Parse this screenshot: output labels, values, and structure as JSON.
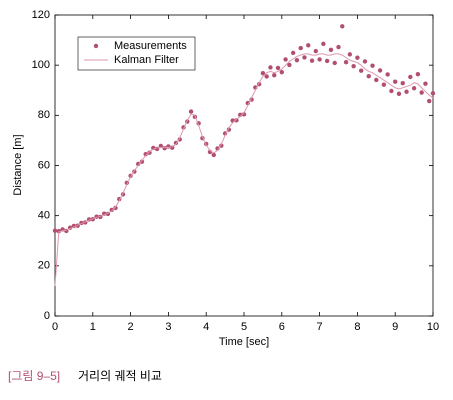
{
  "chart_data": {
    "type": "scatter",
    "xlabel": "Time [sec]",
    "ylabel": "Distance [m]",
    "xlim": [
      0,
      10
    ],
    "ylim": [
      0,
      120
    ],
    "xticks": [
      0,
      1,
      2,
      3,
      4,
      5,
      6,
      7,
      8,
      9,
      10
    ],
    "yticks": [
      0,
      20,
      40,
      60,
      80,
      100,
      120
    ],
    "grid": false,
    "legend": "upper left",
    "x": [
      0,
      0.1,
      0.2,
      0.3,
      0.4,
      0.5,
      0.6,
      0.7,
      0.8,
      0.9,
      1,
      1.1,
      1.2,
      1.3,
      1.4,
      1.5,
      1.6,
      1.7,
      1.8,
      1.9,
      2,
      2.1,
      2.2,
      2.3,
      2.4,
      2.5,
      2.6,
      2.7,
      2.8,
      2.9,
      3,
      3.1,
      3.2,
      3.3,
      3.4,
      3.5,
      3.6,
      3.7,
      3.8,
      3.9,
      4,
      4.1,
      4.2,
      4.3,
      4.4,
      4.5,
      4.6,
      4.7,
      4.8,
      4.9,
      5,
      5.1,
      5.2,
      5.3,
      5.4,
      5.5,
      5.6,
      5.7,
      5.8,
      5.9,
      6,
      6.1,
      6.2,
      6.3,
      6.4,
      6.5,
      6.6,
      6.7,
      6.8,
      6.9,
      7,
      7.1,
      7.2,
      7.3,
      7.4,
      7.5,
      7.6,
      7.7,
      7.8,
      7.9,
      8,
      8.1,
      8.2,
      8.3,
      8.4,
      8.5,
      8.6,
      8.7,
      8.8,
      8.9,
      9,
      9.1,
      9.2,
      9.3,
      9.4,
      9.5,
      9.6,
      9.7,
      9.8,
      9.9,
      10
    ],
    "series": [
      {
        "name": "Measurements",
        "style": "dots",
        "color": "#b24f6e",
        "values": [
          34,
          33.8,
          34.5,
          33.9,
          35.2,
          35.9,
          36.0,
          37.1,
          37.3,
          38.5,
          38.6,
          39.6,
          39.5,
          40.8,
          40.7,
          42.3,
          43.1,
          46.6,
          48.5,
          53.1,
          55.9,
          57.6,
          60.6,
          61.5,
          64.5,
          65.1,
          67.0,
          66.6,
          67.8,
          66.9,
          67.6,
          67.1,
          69.0,
          70.4,
          75.2,
          77.5,
          81.5,
          79.4,
          76.8,
          70.9,
          68.6,
          65.4,
          64.2,
          66.8,
          67.9,
          72.8,
          74.3,
          77.9,
          78.0,
          80.2,
          80.4,
          84.9,
          86.3,
          91.1,
          92.4,
          96.8,
          95.5,
          99.1,
          96.0,
          98.9,
          97.2,
          102.3,
          100.1,
          104.9,
          102.0,
          106.8,
          103.1,
          107.9,
          101.8,
          105.6,
          102.3,
          108.5,
          101.7,
          106.1,
          100.9,
          107.2,
          115.5,
          101.2,
          104.3,
          99.6,
          103.0,
          97.8,
          101.5,
          95.6,
          99.8,
          94.1,
          97.9,
          92.2,
          96.3,
          89.7,
          93.4,
          88.6,
          92.8,
          89.4,
          95.3,
          90.8,
          96.4,
          89.1,
          92.6,
          85.7,
          88.8
        ]
      },
      {
        "name": "Kalman Filter",
        "style": "line",
        "color": "#dc9aae",
        "values": [
          12,
          33.5,
          34,
          34.3,
          34.8,
          35.5,
          36.2,
          36.8,
          37.5,
          38.2,
          38.8,
          39.3,
          39.8,
          40.3,
          41,
          41.8,
          43.5,
          46,
          49,
          52.5,
          55.5,
          58,
          60,
          62,
          64,
          65.5,
          66.5,
          67,
          67.2,
          67.3,
          67.2,
          67.5,
          68.5,
          71,
          74.5,
          78,
          80.5,
          80,
          76,
          71.5,
          68,
          66,
          65,
          66,
          68.5,
          72,
          75,
          77,
          78.5,
          79.5,
          81,
          84,
          87,
          90,
          93,
          95.5,
          97,
          97.5,
          97,
          97.5,
          98.5,
          100,
          101.5,
          102.5,
          103.5,
          104,
          104.5,
          104.5,
          104,
          104,
          104.5,
          104.5,
          104,
          104,
          104.5,
          104.5,
          104,
          103,
          102,
          101.5,
          101,
          100,
          98.5,
          97.5,
          97,
          96,
          95,
          94,
          93,
          92,
          91,
          90.5,
          91,
          91.5,
          92,
          93,
          92.5,
          91,
          89.5,
          88,
          87
        ]
      }
    ]
  },
  "caption": {
    "label": "[그림 9–5]",
    "text": "거리의 궤적 비교"
  }
}
